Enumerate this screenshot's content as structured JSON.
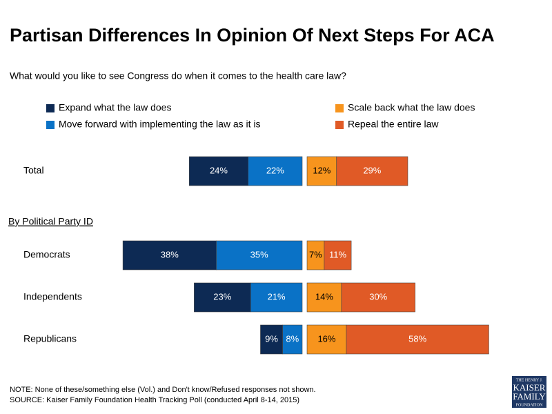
{
  "chart_data": {
    "type": "bar",
    "title": "Partisan Differences In Opinion Of Next Steps For ACA",
    "subtitle": "What would you like to see Congress do when it comes to the health care law?",
    "group_heading": "By Political Party ID",
    "categories": [
      "Total",
      "Democrats",
      "Independents",
      "Republicans"
    ],
    "series": [
      {
        "name": "Expand what the law does",
        "color": "#0d2a54",
        "values": [
          24,
          38,
          23,
          9
        ],
        "value_labels": [
          "24%",
          "38%",
          "23%",
          "9%"
        ]
      },
      {
        "name": "Move forward with implementing the law as it is",
        "color": "#0a72c6",
        "values": [
          22,
          35,
          21,
          8
        ],
        "value_labels": [
          "22%",
          "35%",
          "21%",
          "8%"
        ]
      },
      {
        "name": "Scale back what the law does",
        "color": "#f7941d",
        "values": [
          12,
          7,
          14,
          16
        ],
        "value_labels": [
          "12%",
          "7%",
          "14%",
          "16%"
        ]
      },
      {
        "name": "Repeal the entire law",
        "color": "#e05a26",
        "values": [
          29,
          11,
          30,
          58
        ],
        "value_labels": [
          "29%",
          "11%",
          "30%",
          "58%"
        ]
      }
    ],
    "notes": [
      "NOTE: None of these/something else (Vol.) and Don't know/Refused responses not shown.",
      "SOURCE: Kaiser Family Foundation Health Tracking Poll (conducted April 8-14, 2015)"
    ],
    "logo": [
      "THE HENRY J.",
      "KAISER",
      "FAMILY",
      "FOUNDATION"
    ]
  }
}
